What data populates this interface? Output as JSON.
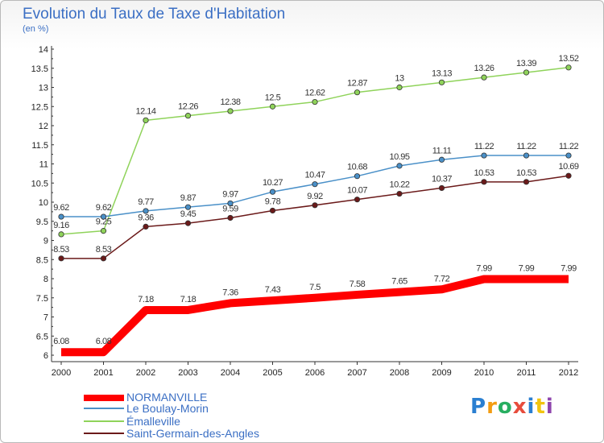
{
  "chart_data": {
    "type": "line",
    "title": "Evolution du Taux de Taxe d'Habitation",
    "subtitle": "(en %)",
    "x": [
      "2000",
      "2001",
      "2002",
      "2003",
      "2004",
      "2005",
      "2006",
      "2007",
      "2008",
      "2009",
      "2010",
      "2011",
      "2012"
    ],
    "ylim": [
      6,
      14
    ],
    "yticks": [
      "6",
      "6.5",
      "7",
      "7.5",
      "8",
      "8.5",
      "9",
      "9.5",
      "10",
      "10.5",
      "11",
      "11.5",
      "12",
      "12.5",
      "13",
      "13.5",
      "14"
    ],
    "grid": false,
    "legend": "bottom-left",
    "series": [
      {
        "name": "NORMANVILLE",
        "color": "#ff0000",
        "values": [
          6.08,
          6.08,
          7.18,
          7.18,
          7.36,
          7.43,
          7.5,
          7.58,
          7.65,
          7.72,
          7.99,
          7.99,
          7.99
        ],
        "labels": [
          "6.08",
          "6.08",
          "7.18",
          "7.18",
          "7.36",
          "7.43",
          "7.5",
          "7.58",
          "7.65",
          "7.72",
          "7.99",
          "7.99",
          "7.99"
        ]
      },
      {
        "name": "Le Boulay-Morin",
        "color": "#4a90c8",
        "values": [
          9.62,
          9.62,
          9.77,
          9.87,
          9.97,
          10.27,
          10.47,
          10.68,
          10.95,
          11.11,
          11.22,
          11.22,
          11.22
        ],
        "labels": [
          "9.62",
          "9.62",
          "9.77",
          "9.87",
          "9.97",
          "10.27",
          "10.47",
          "10.68",
          "10.95",
          "11.11",
          "11.22",
          "11.22",
          "11.22"
        ]
      },
      {
        "name": "Émalleville",
        "color": "#8fd35a",
        "values": [
          9.16,
          9.25,
          12.14,
          12.26,
          12.38,
          12.5,
          12.62,
          12.87,
          13,
          13.13,
          13.26,
          13.39,
          13.52
        ],
        "labels": [
          "9.16",
          "9.25",
          "12.14",
          "12.26",
          "12.38",
          "12.5",
          "12.62",
          "12.87",
          "13",
          "13.13",
          "13.26",
          "13.39",
          "13.52"
        ]
      },
      {
        "name": "Saint-Germain-des-Angles",
        "color": "#6b1a1a",
        "values": [
          8.53,
          8.53,
          9.36,
          9.45,
          9.59,
          9.78,
          9.92,
          10.07,
          10.22,
          10.37,
          10.53,
          10.53,
          10.69
        ],
        "labels": [
          "8.53",
          "8.53",
          "9.36",
          "9.45",
          "9.59",
          "9.78",
          "9.92",
          "10.07",
          "10.22",
          "10.37",
          "10.53",
          "10.53",
          "10.69"
        ]
      }
    ]
  },
  "brand": {
    "letters": [
      "P",
      "r",
      "o",
      "x",
      "i",
      "t",
      "i"
    ],
    "colors": [
      "#2a7fd1",
      "#f39c12",
      "#27ae60",
      "#e74c3c",
      "#2a7fd1",
      "#f1c40f",
      "#8e44ad"
    ]
  }
}
